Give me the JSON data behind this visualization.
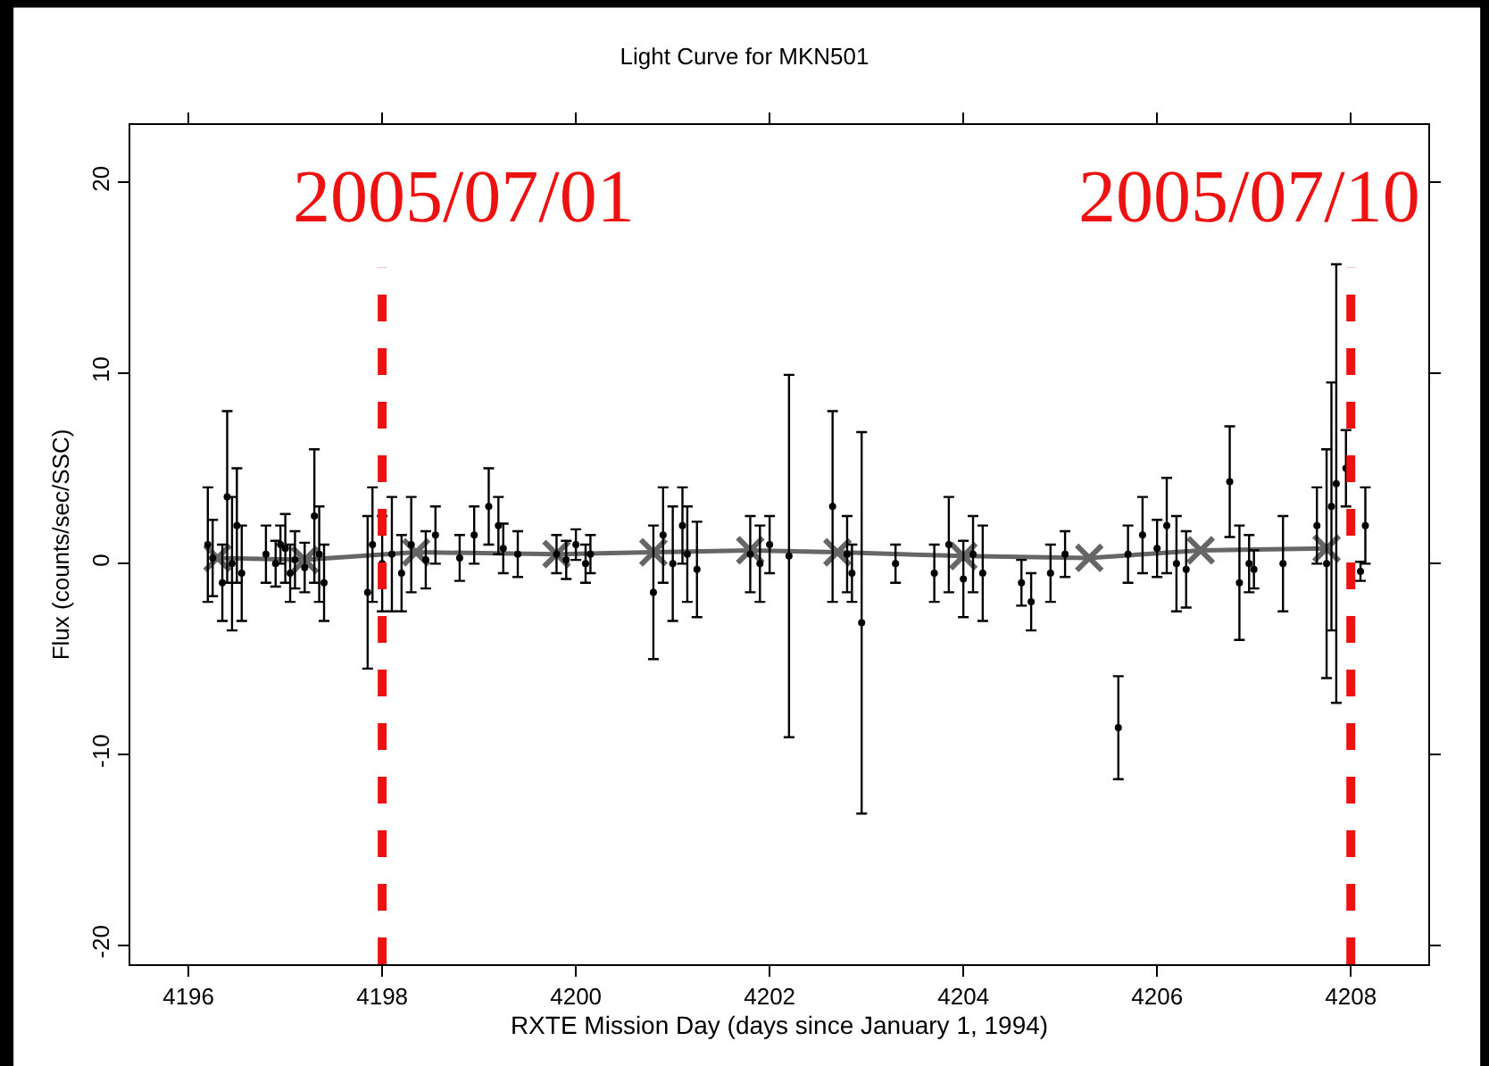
{
  "chart_data": {
    "type": "scatter",
    "title": "Light Curve for MKN501",
    "xlabel": "RXTE Mission Day (days since January 1, 1994)",
    "ylabel": "Flux (counts/sec/SSC)",
    "xlim": [
      4195.4,
      4208.8
    ],
    "xticks": [
      4196,
      4198,
      4200,
      4202,
      4204,
      4206,
      4208
    ],
    "ylim": [
      -21,
      23
    ],
    "yticks": [
      -20,
      -10,
      0,
      10,
      20
    ],
    "series": [
      {
        "color": "#000000",
        "marker": "circle",
        "x": [
          4196.2,
          4196.25,
          4196.35,
          4196.4,
          4196.45,
          4196.5,
          4196.55,
          4196.8,
          4196.9,
          4196.95,
          4197.0,
          4197.05,
          4197.1,
          4197.2,
          4197.3,
          4197.35,
          4197.4,
          4197.85,
          4197.9,
          4198.0,
          4198.1,
          4198.2,
          4198.3,
          4198.45,
          4198.55,
          4198.8,
          4198.95,
          4199.1,
          4199.2,
          4199.25,
          4199.4,
          4199.8,
          4199.9,
          4200.0,
          4200.1,
          4200.15,
          4200.8,
          4200.9,
          4201.0,
          4201.1,
          4201.15,
          4201.25,
          4201.8,
          4201.9,
          4202.0,
          4202.2,
          4202.65,
          4202.8,
          4202.85,
          4202.95,
          4203.3,
          4203.7,
          4203.85,
          4204.0,
          4204.1,
          4204.2,
          4204.6,
          4204.7,
          4204.9,
          4205.05,
          4205.6,
          4205.7,
          4205.85,
          4206.0,
          4206.1,
          4206.2,
          4206.3,
          4206.75,
          4206.85,
          4206.95,
          4207.0,
          4207.3,
          4207.65,
          4207.75,
          4207.8,
          4207.85,
          4207.95,
          4208.1,
          4208.15
        ],
        "values": [
          1.0,
          0.3,
          -1.0,
          3.5,
          0.0,
          2.0,
          -0.5,
          0.5,
          0.0,
          1.0,
          0.8,
          -0.5,
          0.2,
          -0.2,
          2.5,
          0.5,
          -1.0,
          -1.5,
          1.0,
          0.0,
          0.5,
          -0.5,
          1.0,
          0.2,
          1.5,
          0.3,
          1.5,
          3.0,
          2.0,
          0.8,
          0.5,
          0.5,
          0.2,
          1.0,
          0.0,
          0.5,
          -1.5,
          1.5,
          0.0,
          2.0,
          0.5,
          -0.3,
          0.5,
          0.0,
          1.0,
          0.4,
          3.0,
          0.5,
          -0.5,
          -3.1,
          0.0,
          -0.5,
          1.0,
          -0.8,
          0.5,
          -0.5,
          -1.0,
          -2.0,
          -0.5,
          0.5,
          -8.6,
          0.5,
          1.5,
          0.8,
          2.0,
          0.0,
          -0.3,
          4.3,
          -1.0,
          0.0,
          -0.3,
          0.0,
          2.0,
          0.0,
          3.0,
          4.2,
          5.0,
          -0.4,
          2.0
        ],
        "errors": [
          3.0,
          2.0,
          2.0,
          4.5,
          3.5,
          3.0,
          2.5,
          1.5,
          1.2,
          1.0,
          1.8,
          1.5,
          1.5,
          1.3,
          3.5,
          2.5,
          2.0,
          4.0,
          3.0,
          2.5,
          3.0,
          2.0,
          2.5,
          1.5,
          1.5,
          1.2,
          1.5,
          2.0,
          1.5,
          1.3,
          1.2,
          1.0,
          1.0,
          0.8,
          1.0,
          1.0,
          3.5,
          2.5,
          3.0,
          2.0,
          2.5,
          2.5,
          2.0,
          2.0,
          1.5,
          9.5,
          5.0,
          2.0,
          1.5,
          10.0,
          1.0,
          1.5,
          2.5,
          2.0,
          2.0,
          2.5,
          1.2,
          1.5,
          1.5,
          1.2,
          2.7,
          1.5,
          2.0,
          1.5,
          2.5,
          2.5,
          2.0,
          2.9,
          3.0,
          1.5,
          1.0,
          2.5,
          2.0,
          6.0,
          6.5,
          11.5,
          2.0,
          0.5,
          2.0
        ]
      },
      {
        "type": "line",
        "color": "#666666",
        "marker": "cross",
        "x": [
          4196.3,
          4197.2,
          4198.35,
          4199.8,
          4200.8,
          4201.8,
          4202.7,
          4204.0,
          4205.3,
          4206.45,
          4207.75
        ],
        "values": [
          0.3,
          0.2,
          0.6,
          0.5,
          0.6,
          0.7,
          0.6,
          0.4,
          0.3,
          0.7,
          0.8
        ]
      }
    ],
    "ref_lines": [
      {
        "axis": "x",
        "value": 4198,
        "color": "#ee1111",
        "line_style": "dashed"
      },
      {
        "axis": "x",
        "value": 4208,
        "color": "#ee1111",
        "line_style": "dashed"
      }
    ],
    "annotations": [
      "2005/07/01",
      "2005/07/10"
    ]
  }
}
